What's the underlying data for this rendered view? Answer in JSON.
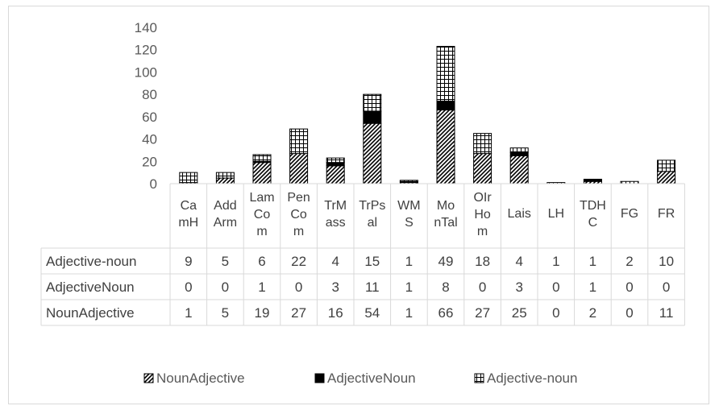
{
  "chart_data": {
    "type": "bar",
    "stacked": true,
    "categories": [
      [
        "Ca",
        "mH"
      ],
      [
        "Add",
        "Arm"
      ],
      [
        "Lam",
        "Co",
        "m"
      ],
      [
        "Pen",
        "Co",
        "m"
      ],
      [
        "TrM",
        "ass"
      ],
      [
        "TrPs",
        "al"
      ],
      [
        "WM",
        "S"
      ],
      [
        "Mo",
        "nTal"
      ],
      [
        "OIr",
        "Ho",
        "m"
      ],
      [
        "Lais"
      ],
      [
        "LH"
      ],
      [
        "TDH",
        "C"
      ],
      [
        "FG"
      ],
      [
        "FR"
      ]
    ],
    "series": [
      {
        "name": "NounAdjective",
        "values": [
          1,
          5,
          19,
          27,
          16,
          54,
          1,
          66,
          27,
          25,
          0,
          2,
          0,
          11
        ],
        "pattern": "diagonal"
      },
      {
        "name": "AdjectiveNoun",
        "values": [
          0,
          0,
          1,
          0,
          3,
          11,
          1,
          8,
          0,
          3,
          0,
          1,
          0,
          0
        ],
        "pattern": "solid",
        "color": "#000000"
      },
      {
        "name": "Adjective-noun",
        "values": [
          9,
          5,
          6,
          22,
          4,
          15,
          1,
          49,
          18,
          4,
          1,
          1,
          2,
          10
        ],
        "pattern": "grid"
      }
    ],
    "yticks": [
      0,
      20,
      40,
      60,
      80,
      100,
      120,
      140
    ],
    "ylim": [
      0,
      140
    ],
    "legend_position": "bottom",
    "data_table": true,
    "table_rows": [
      "Adjective-noun",
      "AdjectiveNoun",
      "NounAdjective"
    ],
    "grid": false
  }
}
